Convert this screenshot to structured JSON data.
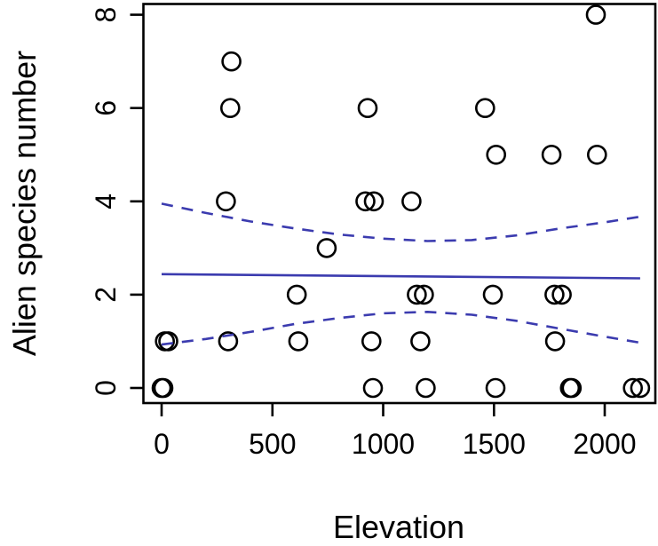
{
  "figure": {
    "xlabel": "Elevation",
    "ylabel": "Alien species number"
  },
  "colors": {
    "line_blue": "#3b3baf",
    "point_stroke": "#000000",
    "frame": "#000000",
    "text": "#000000",
    "background": "#ffffff"
  },
  "chart_data": {
    "type": "scatter",
    "title": "",
    "xlabel": "Elevation",
    "ylabel": "Alien species number",
    "x_ticks": [
      0,
      500,
      1000,
      1500,
      2000
    ],
    "y_ticks": [
      0,
      2,
      4,
      6,
      8
    ],
    "xlim": [
      -95,
      2230
    ],
    "ylim": [
      -0.35,
      8.55
    ],
    "grid": false,
    "legend": "none",
    "points": [
      [
        1960,
        8
      ],
      [
        315,
        7
      ],
      [
        310,
        6
      ],
      [
        930,
        6
      ],
      [
        1460,
        6
      ],
      [
        1510,
        5
      ],
      [
        1760,
        5
      ],
      [
        1965,
        5
      ],
      [
        290,
        4
      ],
      [
        920,
        4
      ],
      [
        958,
        4
      ],
      [
        1128,
        4
      ],
      [
        745,
        3
      ],
      [
        610,
        2
      ],
      [
        1152,
        2
      ],
      [
        1184,
        2
      ],
      [
        1495,
        2
      ],
      [
        1773,
        2
      ],
      [
        1806,
        2
      ],
      [
        15,
        1
      ],
      [
        30,
        1
      ],
      [
        300,
        1
      ],
      [
        617,
        1
      ],
      [
        947,
        1
      ],
      [
        1168,
        1
      ],
      [
        1776,
        1
      ],
      [
        0,
        0
      ],
      [
        8,
        0
      ],
      [
        954,
        0
      ],
      [
        1192,
        0
      ],
      [
        1507,
        0
      ],
      [
        1843,
        0
      ],
      [
        1851,
        0
      ],
      [
        2127,
        0
      ],
      [
        2160,
        0
      ]
    ],
    "regression_line": {
      "style": "solid",
      "points": [
        [
          0,
          2.44
        ],
        [
          2160,
          2.35
        ]
      ]
    },
    "confidence_band": {
      "style": "dashed",
      "upper": [
        [
          0,
          3.95
        ],
        [
          200,
          3.75
        ],
        [
          400,
          3.57
        ],
        [
          600,
          3.42
        ],
        [
          800,
          3.29
        ],
        [
          1000,
          3.2
        ],
        [
          1200,
          3.15
        ],
        [
          1400,
          3.17
        ],
        [
          1600,
          3.27
        ],
        [
          1800,
          3.42
        ],
        [
          2000,
          3.55
        ],
        [
          2160,
          3.67
        ]
      ],
      "lower": [
        [
          0,
          0.93
        ],
        [
          200,
          1.05
        ],
        [
          400,
          1.2
        ],
        [
          600,
          1.37
        ],
        [
          800,
          1.5
        ],
        [
          1000,
          1.6
        ],
        [
          1200,
          1.63
        ],
        [
          1400,
          1.57
        ],
        [
          1600,
          1.44
        ],
        [
          1800,
          1.27
        ],
        [
          2000,
          1.1
        ],
        [
          2160,
          0.97
        ]
      ]
    }
  }
}
